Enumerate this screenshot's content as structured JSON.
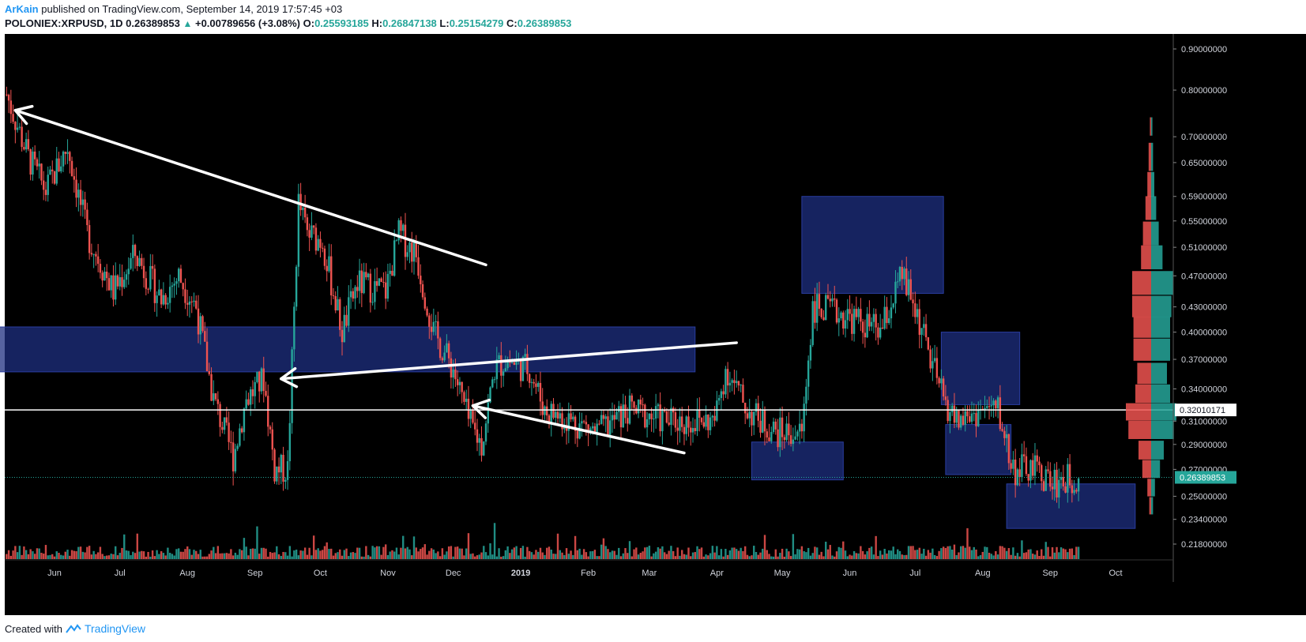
{
  "header": {
    "author": "ArKain",
    "published_text": "published on TradingView.com, September 14, 2019 17:57:45 +03",
    "symbol": "POLONIEX:XRPUSD, 1D",
    "last_price": "0.26389853",
    "change": "+0.00789656 (+3.08%)",
    "o_label": "O:",
    "o_value": "0.25593185",
    "h_label": "H:",
    "h_value": "0.26847138",
    "l_label": "L:",
    "l_value": "0.25154279",
    "c_label": "C:",
    "c_value": "0.26389853"
  },
  "footer": {
    "created_with": "Created with",
    "brand": "TradingView"
  },
  "colors": {
    "background": "#000000",
    "up": "#26a69a",
    "down": "#ef5350",
    "box_fill": "#1e2f80",
    "line": "#ffffff",
    "price_label_bg": "#26a69a"
  },
  "chart_data": {
    "type": "candlestick",
    "log_scale": true,
    "y_ticks": [
      "0.90000000",
      "0.80000000",
      "0.70000000",
      "0.65000000",
      "0.59000000",
      "0.55000000",
      "0.51000000",
      "0.47000000",
      "0.43000000",
      "0.40000000",
      "0.37000000",
      "0.34000000",
      "0.31000000",
      "0.29000000",
      "0.27000000",
      "0.25000000",
      "0.23400000",
      "0.21800000"
    ],
    "x_ticks": [
      "Jun",
      "Jul",
      "Aug",
      "Sep",
      "Oct",
      "Nov",
      "Dec",
      "2019",
      "Feb",
      "Mar",
      "Apr",
      "May",
      "Jun",
      "Jul",
      "Aug",
      "Sep",
      "Oct"
    ],
    "x_tick_dates": [
      "2018-06-01",
      "2018-07-01",
      "2018-08-01",
      "2018-09-01",
      "2018-10-01",
      "2018-11-01",
      "2018-12-01",
      "2019-01-01",
      "2019-02-01",
      "2019-03-01",
      "2019-04-01",
      "2019-05-01",
      "2019-06-01",
      "2019-07-01",
      "2019-08-01",
      "2019-09-01",
      "2019-10-01"
    ],
    "horizontal_line": {
      "value": 0.32010171,
      "label": "0.32010171"
    },
    "last_price": {
      "value": 0.26389853,
      "label": "0.26389853"
    },
    "price_path": [
      [
        "2018-05-10",
        0.79
      ],
      [
        "2018-05-20",
        0.66
      ],
      [
        "2018-05-28",
        0.6
      ],
      [
        "2018-06-07",
        0.68
      ],
      [
        "2018-06-16",
        0.53
      ],
      [
        "2018-06-28",
        0.45
      ],
      [
        "2018-07-08",
        0.5
      ],
      [
        "2018-07-20",
        0.44
      ],
      [
        "2018-07-28",
        0.47
      ],
      [
        "2018-08-05",
        0.43
      ],
      [
        "2018-08-13",
        0.33
      ],
      [
        "2018-08-22",
        0.28
      ],
      [
        "2018-08-28",
        0.33
      ],
      [
        "2018-09-05",
        0.35
      ],
      [
        "2018-09-10",
        0.27
      ],
      [
        "2018-09-16",
        0.27
      ],
      [
        "2018-09-21",
        0.58
      ],
      [
        "2018-09-25",
        0.53
      ],
      [
        "2018-10-02",
        0.52
      ],
      [
        "2018-10-11",
        0.4
      ],
      [
        "2018-10-18",
        0.46
      ],
      [
        "2018-10-31",
        0.45
      ],
      [
        "2018-11-06",
        0.53
      ],
      [
        "2018-11-14",
        0.5
      ],
      [
        "2018-11-22",
        0.4
      ],
      [
        "2018-12-01",
        0.36
      ],
      [
        "2018-12-08",
        0.31
      ],
      [
        "2018-12-14",
        0.29
      ],
      [
        "2018-12-20",
        0.36
      ],
      [
        "2018-12-25",
        0.37
      ],
      [
        "2019-01-05",
        0.36
      ],
      [
        "2019-01-12",
        0.32
      ],
      [
        "2019-01-25",
        0.31
      ],
      [
        "2019-02-05",
        0.3
      ],
      [
        "2019-02-20",
        0.32
      ],
      [
        "2019-03-10",
        0.31
      ],
      [
        "2019-03-31",
        0.31
      ],
      [
        "2019-04-05",
        0.36
      ],
      [
        "2019-04-15",
        0.32
      ],
      [
        "2019-04-28",
        0.3
      ],
      [
        "2019-05-10",
        0.3
      ],
      [
        "2019-05-15",
        0.43
      ],
      [
        "2019-05-30",
        0.42
      ],
      [
        "2019-06-15",
        0.4
      ],
      [
        "2019-06-25",
        0.47
      ],
      [
        "2019-07-02",
        0.42
      ],
      [
        "2019-07-08",
        0.37
      ],
      [
        "2019-07-14",
        0.33
      ],
      [
        "2019-07-20",
        0.31
      ],
      [
        "2019-08-01",
        0.32
      ],
      [
        "2019-08-08",
        0.32
      ],
      [
        "2019-08-15",
        0.27
      ],
      [
        "2019-08-25",
        0.27
      ],
      [
        "2019-09-02",
        0.26
      ],
      [
        "2019-09-14",
        0.264
      ]
    ],
    "annotations": [
      {
        "type": "arrow",
        "from": [
          "2018-12-16",
          0.485
        ],
        "to": [
          "2018-05-14",
          0.755
        ]
      },
      {
        "type": "arrow",
        "from": [
          "2019-04-10",
          0.388
        ],
        "to": [
          "2018-09-13",
          0.35
        ]
      },
      {
        "type": "arrow",
        "from": [
          "2019-03-17",
          0.283
        ],
        "to": [
          "2018-12-10",
          0.324
        ]
      }
    ],
    "zones": [
      {
        "x1": "2018-03-25",
        "x2": "2019-03-22",
        "y_top": 0.406,
        "y_bottom": 0.357
      },
      {
        "x1": "2019-04-17",
        "x2": "2019-05-29",
        "y_top": 0.292,
        "y_bottom": 0.262
      },
      {
        "x1": "2019-05-10",
        "x2": "2019-07-14",
        "y_top": 0.59,
        "y_bottom": 0.447
      },
      {
        "x1": "2019-07-13",
        "x2": "2019-08-18",
        "y_top": 0.4,
        "y_bottom": 0.325
      },
      {
        "x1": "2019-07-15",
        "x2": "2019-08-14",
        "y_top": 0.307,
        "y_bottom": 0.266
      },
      {
        "x1": "2019-08-12",
        "x2": "2019-10-10",
        "y_top": 0.259,
        "y_bottom": 0.228
      }
    ],
    "volume_profile": [
      {
        "price": 0.72,
        "buy": 0.02,
        "sell": 0.02
      },
      {
        "price": 0.66,
        "buy": 0.03,
        "sell": 0.04
      },
      {
        "price": 0.61,
        "buy": 0.05,
        "sell": 0.06
      },
      {
        "price": 0.57,
        "buy": 0.08,
        "sell": 0.09
      },
      {
        "price": 0.53,
        "buy": 0.12,
        "sell": 0.13
      },
      {
        "price": 0.495,
        "buy": 0.18,
        "sell": 0.16
      },
      {
        "price": 0.46,
        "buy": 0.35,
        "sell": 0.3
      },
      {
        "price": 0.43,
        "buy": 0.32,
        "sell": 0.3
      },
      {
        "price": 0.405,
        "buy": 0.3,
        "sell": 0.28
      },
      {
        "price": 0.38,
        "buy": 0.3,
        "sell": 0.28
      },
      {
        "price": 0.355,
        "buy": 0.25,
        "sell": 0.22
      },
      {
        "price": 0.335,
        "buy": 0.3,
        "sell": 0.25
      },
      {
        "price": 0.318,
        "buy": 0.4,
        "sell": 0.4
      },
      {
        "price": 0.302,
        "buy": 0.36,
        "sell": 0.36
      },
      {
        "price": 0.285,
        "buy": 0.2,
        "sell": 0.2
      },
      {
        "price": 0.27,
        "buy": 0.14,
        "sell": 0.14
      },
      {
        "price": 0.256,
        "buy": 0.06,
        "sell": 0.06
      },
      {
        "price": 0.243,
        "buy": 0.03,
        "sell": 0.03
      }
    ]
  }
}
